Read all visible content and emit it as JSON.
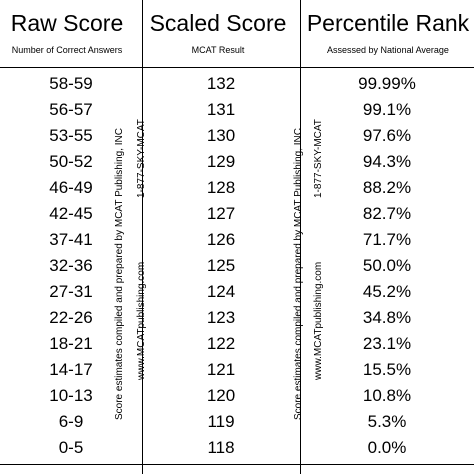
{
  "headers": {
    "raw": {
      "title": "Raw Score",
      "subtitle": "Number of Correct Answers"
    },
    "scaled": {
      "title": "Scaled Score",
      "subtitle": "MCAT Result"
    },
    "percentile": {
      "title": "Percentile Rank",
      "subtitle": "Assessed by National Average"
    }
  },
  "rows": [
    {
      "raw": "58-59",
      "scaled": "132",
      "percentile": "99.99%"
    },
    {
      "raw": "56-57",
      "scaled": "131",
      "percentile": "99.1%"
    },
    {
      "raw": "53-55",
      "scaled": "130",
      "percentile": "97.6%"
    },
    {
      "raw": "50-52",
      "scaled": "129",
      "percentile": "94.3%"
    },
    {
      "raw": "46-49",
      "scaled": "128",
      "percentile": "88.2%"
    },
    {
      "raw": "42-45",
      "scaled": "127",
      "percentile": "82.7%"
    },
    {
      "raw": "37-41",
      "scaled": "126",
      "percentile": "71.7%"
    },
    {
      "raw": "32-36",
      "scaled": "125",
      "percentile": "50.0%"
    },
    {
      "raw": "27-31",
      "scaled": "124",
      "percentile": "45.2%"
    },
    {
      "raw": "22-26",
      "scaled": "123",
      "percentile": "34.8%"
    },
    {
      "raw": "18-21",
      "scaled": "122",
      "percentile": "23.1%"
    },
    {
      "raw": "14-17",
      "scaled": "121",
      "percentile": "15.5%"
    },
    {
      "raw": "10-13",
      "scaled": "120",
      "percentile": "10.8%"
    },
    {
      "raw": "6-9",
      "scaled": "119",
      "percentile": "5.3%"
    },
    {
      "raw": "0-5",
      "scaled": "118",
      "percentile": "0.0%"
    }
  ],
  "credits": {
    "line1": "Score estimates compiled and prepared by MCAT Publishing, INC",
    "phone": "1-877-SKY-MCAT",
    "website": "www.MCATpublishing.com"
  }
}
